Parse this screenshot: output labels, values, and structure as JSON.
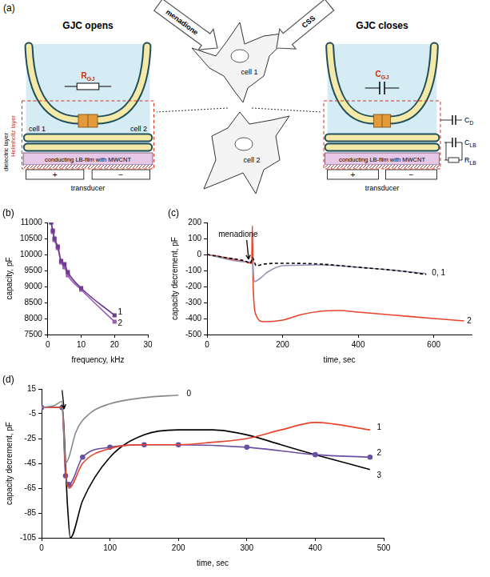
{
  "diagram": {
    "panel": "(a)",
    "cells": {
      "top": "cell 1",
      "bottom": "cell 2"
    },
    "stimuli": [
      "menadione",
      "CSS"
    ],
    "left": {
      "title": "GJC opens",
      "element": {
        "symbol": "R",
        "subscript": "GJ"
      },
      "cells": [
        "cell 1",
        "cell 2"
      ]
    },
    "right": {
      "title": "GJC closes",
      "element": {
        "symbol": "C",
        "subscript": "GJ"
      },
      "circuit": [
        {
          "symbol": "C",
          "subscript": "D"
        },
        {
          "symbol": "C",
          "subscript": "LB"
        },
        {
          "symbol": "R",
          "subscript": "LB"
        }
      ]
    },
    "layers": {
      "dielectric": "dielectric layer",
      "helmholtz": "Helmholtz layer",
      "film": "conducting LB-film with MWCNT",
      "transducer": "transducer",
      "electrodes": [
        "+",
        "−"
      ]
    }
  },
  "chart_data": [
    {
      "panel": "(b)",
      "type": "line",
      "x_label": "frequency, kHz",
      "y_label": "capacity, pF",
      "xlim": [
        0,
        30
      ],
      "xticks": [
        0,
        10,
        20,
        30
      ],
      "ylim": [
        7500,
        11000
      ],
      "yticks": [
        7500,
        8000,
        8500,
        9000,
        9500,
        10000,
        10500,
        11000
      ],
      "grid": false,
      "x": [
        1,
        1.5,
        2,
        3,
        4,
        5,
        6,
        10,
        20
      ],
      "series": [
        {
          "color": "#6f3d8f",
          "marker": "square",
          "line_style": "solid",
          "values": [
            11000,
            10750,
            10500,
            10250,
            9800,
            9700,
            9450,
            8950,
            8100
          ]
        },
        {
          "color": "#9a5fb3",
          "marker": "square",
          "line_style": "solid",
          "values": [
            11000,
            10700,
            10450,
            10200,
            9750,
            9600,
            9350,
            8900,
            7900
          ]
        }
      ],
      "annotations": [
        {
          "text": "1",
          "x": 21,
          "y": 8200
        },
        {
          "text": "2",
          "x": 21,
          "y": 7850
        }
      ]
    },
    {
      "panel": "(c)",
      "type": "line",
      "x_label": "time, sec",
      "y_label": "capacity decrement, pF",
      "xlim": [
        0,
        700
      ],
      "xticks": [
        0,
        200,
        400,
        600
      ],
      "ylim": [
        -500,
        200
      ],
      "yticks": [
        -500,
        -400,
        -300,
        -200,
        -100,
        0,
        100,
        200
      ],
      "grid": false,
      "series": [
        {
          "color": "#000000",
          "marker": "none",
          "line_style": "dashed",
          "x": [
            0,
            50,
            100,
            115,
            120,
            130,
            150,
            200,
            300,
            400,
            500,
            580
          ],
          "values": [
            0,
            -20,
            -40,
            -55,
            -20,
            -70,
            -60,
            -55,
            -60,
            -80,
            -100,
            -125
          ]
        },
        {
          "color": "#9a8fb5",
          "marker": "none",
          "line_style": "solid",
          "x": [
            0,
            100,
            120,
            125,
            140,
            160,
            200,
            300,
            400,
            500,
            580
          ],
          "values": [
            0,
            -45,
            -50,
            -170,
            -150,
            -110,
            -70,
            -65,
            -80,
            -100,
            -120
          ]
        },
        {
          "color": "#e8442c",
          "marker": "none",
          "line_style": "solid",
          "x": [
            0,
            50,
            100,
            118,
            120,
            122,
            130,
            150,
            200,
            250,
            300,
            350,
            400,
            500,
            600,
            680
          ],
          "values": [
            0,
            -20,
            -45,
            -55,
            180,
            -200,
            -380,
            -420,
            -410,
            -375,
            -355,
            -350,
            -360,
            -380,
            -400,
            -415
          ]
        }
      ],
      "annotations": [
        {
          "text": "menadione",
          "x": 30,
          "y": 125
        },
        {
          "text": "0, 1",
          "x": 595,
          "y": -115
        },
        {
          "text": "2",
          "x": 688,
          "y": -415
        }
      ],
      "arrows": [
        {
          "from": [
            105,
            90
          ],
          "to": [
            110,
            -30
          ]
        }
      ]
    },
    {
      "panel": "(d)",
      "type": "line",
      "x_label": "time, sec",
      "y_label": "capacity decrement, pF",
      "xlim": [
        0,
        500
      ],
      "xticks": [
        0,
        100,
        200,
        300,
        400,
        500
      ],
      "ylim": [
        -105,
        15
      ],
      "yticks": [
        -105,
        -85,
        -65,
        -45,
        -25,
        -5,
        15
      ],
      "grid": false,
      "series": [
        {
          "color": "#888888",
          "marker": "none",
          "line_style": "solid",
          "x": [
            0,
            20,
            30,
            35,
            40,
            50,
            70,
            100,
            150,
            200
          ],
          "values": [
            0,
            2,
            5,
            -45,
            -40,
            -20,
            -5,
            3,
            8,
            10
          ]
        },
        {
          "color": "#e8442c",
          "marker": "none",
          "line_style": "solid",
          "x": [
            0,
            30,
            35,
            40,
            60,
            100,
            150,
            200,
            250,
            300,
            350,
            400,
            480
          ],
          "values": [
            0,
            0,
            -50,
            -65,
            -45,
            -33,
            -30,
            -30,
            -28,
            -25,
            -18,
            -12,
            -18
          ]
        },
        {
          "color": "#6a4fa0",
          "marker": "circle",
          "line_style": "solid",
          "x": [
            0,
            30,
            35,
            40,
            60,
            100,
            150,
            200,
            300,
            400,
            480
          ],
          "values": [
            0,
            0,
            -55,
            -62,
            -40,
            -32,
            -30,
            -30,
            -32,
            -38,
            -40
          ]
        },
        {
          "color": "#000000",
          "marker": "none",
          "line_style": "solid",
          "x": [
            0,
            30,
            38,
            42,
            60,
            100,
            150,
            200,
            250,
            300,
            350,
            400,
            480
          ],
          "values": [
            0,
            0,
            -80,
            -105,
            -75,
            -40,
            -22,
            -18,
            -18,
            -22,
            -30,
            -38,
            -50
          ]
        }
      ],
      "annotations": [
        {
          "text": "0",
          "x": 212,
          "y": 11
        },
        {
          "text": "1",
          "x": 490,
          "y": -16
        },
        {
          "text": "2",
          "x": 490,
          "y": -37
        },
        {
          "text": "3",
          "x": 490,
          "y": -55
        }
      ],
      "arrows": [
        {
          "from": [
            30,
            14
          ],
          "to": [
            33,
            -1
          ]
        }
      ]
    }
  ]
}
